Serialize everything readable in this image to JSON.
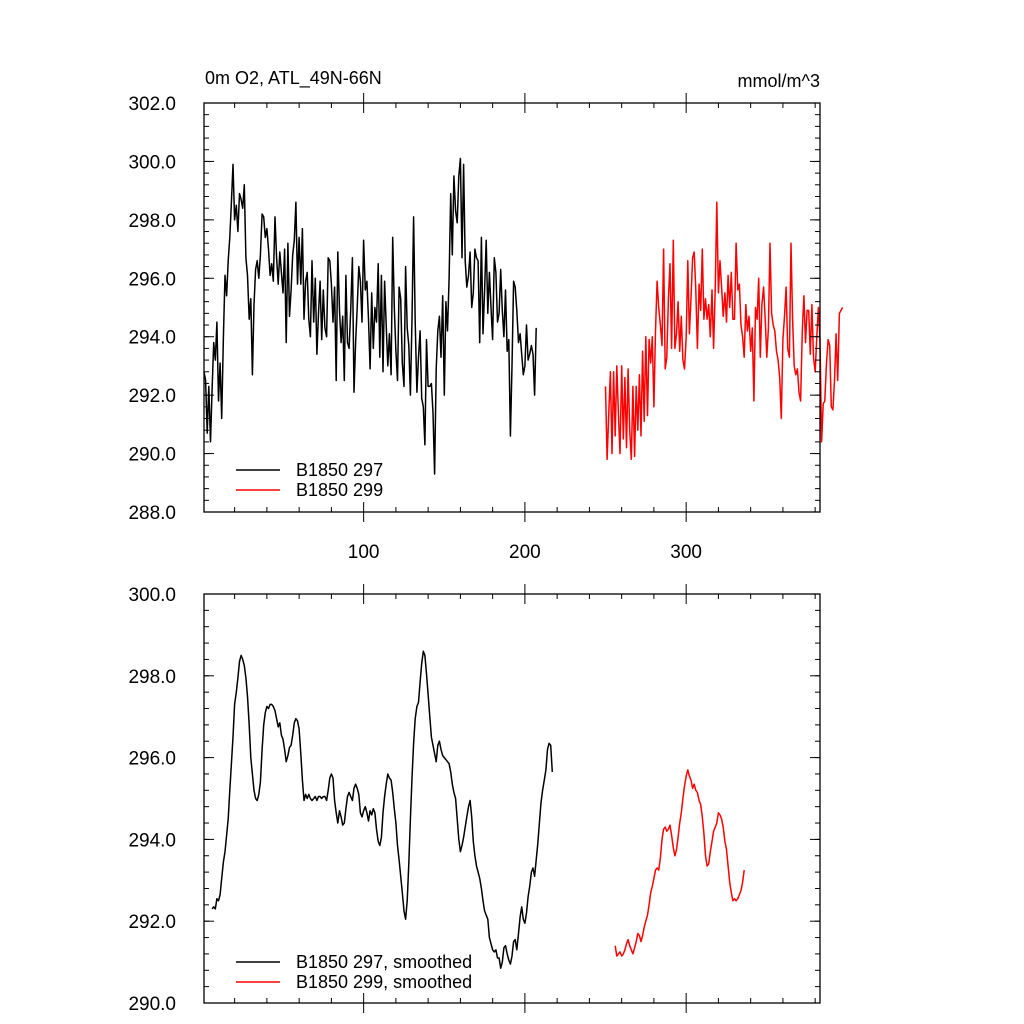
{
  "chart_data": [
    {
      "type": "line",
      "title": "0m O2, ATL_49N-66N",
      "units": "mmol/m^3",
      "xlabel": "",
      "ylabel": "",
      "xlim": [
        1,
        383
      ],
      "ylim": [
        288.0,
        302.0
      ],
      "x_ticks": [
        100,
        200,
        300
      ],
      "x_tick_labels": [
        "100",
        "200",
        "300"
      ],
      "y_ticks": [
        288,
        290,
        292,
        294,
        296,
        298,
        300,
        302
      ],
      "y_tick_labels": [
        "288.0",
        "290.0",
        "292.0",
        "294.0",
        "296.0",
        "298.0",
        "300.0",
        "302.0"
      ],
      "legend_position": "bottom-left",
      "series": [
        {
          "name": "B1850 297",
          "color": "#000000",
          "x_start": 1,
          "values": [
            292.8,
            292.5,
            290.7,
            292.3,
            290.4,
            292.2,
            293.8,
            293.2,
            294.5,
            291.8,
            293.1,
            291.2,
            294.0,
            296.1,
            295.4,
            296.6,
            297.4,
            298.6,
            299.9,
            298.0,
            298.5,
            297.6,
            298.9,
            298.7,
            298.4,
            299.2,
            296.7,
            296.1,
            294.6,
            295.3,
            292.7,
            295.1,
            296.3,
            296.6,
            296.0,
            296.8,
            298.2,
            298.1,
            297.4,
            297.7,
            297.0,
            296.1,
            296.5,
            295.9,
            298.1,
            296.7,
            295.8,
            296.9,
            296.2,
            295.5,
            297.0,
            293.8,
            297.2,
            294.7,
            295.6,
            296.8,
            297.3,
            298.6,
            295.8,
            297.4,
            295.8,
            297.7,
            294.6,
            295.9,
            296.2,
            294.6,
            294.0,
            296.6,
            294.5,
            296.0,
            293.4,
            294.8,
            295.9,
            293.9,
            295.6,
            294.3,
            294.0,
            296.7,
            296.6,
            295.8,
            294.5,
            295.7,
            292.5,
            296.9,
            294.9,
            293.8,
            294.7,
            292.5,
            296.1,
            293.8,
            293.6,
            294.9,
            296.7,
            292.1,
            293.8,
            295.0,
            296.4,
            295.9,
            294.5,
            297.3,
            295.6,
            295.9,
            294.6,
            292.9,
            295.5,
            293.6,
            295.0,
            294.5,
            296.5,
            293.3,
            296.1,
            292.8,
            295.9,
            294.4,
            293.0,
            294.1,
            292.7,
            297.4,
            295.0,
            293.5,
            292.5,
            295.7,
            295.3,
            293.1,
            292.3,
            296.4,
            294.3,
            293.7,
            292.0,
            294.6,
            298.1,
            294.5,
            292.1,
            293.3,
            294.2,
            291.9,
            291.6,
            290.3,
            293.9,
            292.3,
            292.3,
            292.4,
            291.4,
            289.3,
            292.9,
            294.2,
            294.7,
            293.3,
            295.4,
            292.0,
            295.2,
            294.2,
            296.0,
            298.9,
            296.8,
            299.5,
            298.3,
            297.9,
            299.5,
            300.1,
            296.7,
            299.9,
            296.6,
            295.7,
            296.1,
            296.9,
            295.0,
            295.5,
            297.0,
            296.7,
            296.6,
            293.8,
            297.4,
            294.1,
            295.6,
            297.3,
            294.8,
            296.2,
            295.0,
            293.9,
            296.7,
            296.2,
            294.5,
            294.8,
            296.3,
            294.9,
            294.0,
            295.6,
            293.5,
            293.9,
            290.6,
            293.0,
            295.9,
            295.7,
            294.9,
            293.8,
            294.1,
            293.4,
            292.7,
            293.0,
            294.4,
            293.2,
            293.4,
            293.7,
            293.4,
            292.0,
            294.3
          ],
          "values_legend": "B1850 297"
        },
        {
          "name": "B1850 299",
          "color": "#ff0000",
          "x_start": 250,
          "values": [
            292.3,
            289.8,
            291.4,
            292.8,
            290.0,
            292.8,
            290.6,
            293.0,
            291.4,
            290.0,
            293.0,
            290.5,
            292.6,
            290.2,
            292.9,
            290.8,
            289.8,
            292.3,
            289.9,
            292.3,
            290.8,
            292.7,
            290.6,
            293.5,
            291.1,
            294.0,
            291.3,
            293.9,
            293.1,
            294.0,
            291.6,
            294.2,
            295.9,
            295.0,
            294.4,
            293.7,
            297.0,
            292.9,
            293.3,
            295.3,
            296.5,
            293.6,
            297.3,
            293.6,
            294.1,
            295.2,
            293.5,
            294.7,
            293.2,
            292.9,
            294.0,
            296.6,
            294.1,
            295.3,
            296.7,
            296.9,
            295.6,
            293.6,
            295.8,
            294.9,
            297.0,
            294.6,
            295.3,
            294.6,
            295.1,
            294.0,
            295.6,
            293.6,
            295.6,
            298.6,
            295.5,
            296.6,
            295.7,
            294.7,
            295.5,
            294.5,
            296.1,
            295.0,
            296.2,
            294.6,
            294.6,
            297.2,
            295.6,
            295.8,
            294.4,
            294.0,
            293.3,
            295.1,
            294.2,
            294.7,
            293.5,
            294.3,
            291.8,
            295.0,
            294.6,
            296.0,
            293.3,
            295.1,
            295.7,
            294.6,
            293.3,
            294.3,
            297.2,
            294.8,
            294.4,
            294.2,
            293.5,
            293.2,
            292.6,
            291.2,
            293.9,
            294.7,
            295.7,
            293.6,
            293.3,
            297.2,
            294.6,
            293.0,
            292.7,
            292.9,
            292.1,
            291.8,
            294.2,
            295.4,
            293.8,
            294.9,
            294.9,
            293.4,
            295.1,
            293.3,
            292.8,
            294.0,
            295.0,
            293.9,
            290.4,
            291.7,
            291.8,
            293.1,
            293.9,
            293.7,
            291.6,
            291.5,
            292.5,
            294.1,
            292.5,
            294.8,
            294.9,
            295.0
          ],
          "values_legend": "B1850 299"
        }
      ]
    },
    {
      "type": "line",
      "title": "",
      "units": "",
      "xlabel": "",
      "ylabel": "",
      "xlim": [
        1,
        383
      ],
      "ylim": [
        290.0,
        300.0
      ],
      "x_ticks": [],
      "x_tick_labels": [],
      "y_ticks": [
        290,
        292,
        294,
        296,
        298,
        300
      ],
      "y_tick_labels": [
        "290.0",
        "292.0",
        "294.0",
        "296.0",
        "298.0",
        "300.0"
      ],
      "legend_position": "bottom-left",
      "series": [
        {
          "name": "B1850 297, smoothed",
          "color": "#000000",
          "x_start": 6,
          "values": [
            292.3,
            292.35,
            292.3,
            292.55,
            292.5,
            292.65,
            293.05,
            293.45,
            293.7,
            294.1,
            294.5,
            295.2,
            295.85,
            296.5,
            297.3,
            297.6,
            297.95,
            298.35,
            298.5,
            298.4,
            298.25,
            297.95,
            297.5,
            296.8,
            296.0,
            295.6,
            295.2,
            295.0,
            294.95,
            295.1,
            295.4,
            296.2,
            296.8,
            297.1,
            297.25,
            297.2,
            297.3,
            297.3,
            297.25,
            297.15,
            296.95,
            296.75,
            296.85,
            296.55,
            296.45,
            296.2,
            295.9,
            296.05,
            296.25,
            296.3,
            296.55,
            296.85,
            296.95,
            296.9,
            296.7,
            296.1,
            295.45,
            294.95,
            295.1,
            295.0,
            295.1,
            295.0,
            294.95,
            295.0,
            295.05,
            294.95,
            295.05,
            295.05,
            295.0,
            295.05,
            295.05,
            294.95,
            295.2,
            295.5,
            295.6,
            295.5,
            294.95,
            294.65,
            294.4,
            294.7,
            294.55,
            294.35,
            294.4,
            294.75,
            295.05,
            295.15,
            295.05,
            294.95,
            295.25,
            295.35,
            295.25,
            295.1,
            294.65,
            294.55,
            294.7,
            294.8,
            294.65,
            294.45,
            294.7,
            294.6,
            294.75,
            294.65,
            294.25,
            293.95,
            293.85,
            294.05,
            294.65,
            295.05,
            295.35,
            295.6,
            295.5,
            295.45,
            295.15,
            294.75,
            294.4,
            293.85,
            293.5,
            293.1,
            292.7,
            292.25,
            292.05,
            292.5,
            293.4,
            294.5,
            295.5,
            296.35,
            296.95,
            297.25,
            297.35,
            297.85,
            298.3,
            298.6,
            298.5,
            298.05,
            297.55,
            297.0,
            296.5,
            296.3,
            296.1,
            295.9,
            296.3,
            296.4,
            296.2,
            296.05,
            296.0,
            295.95,
            295.9,
            295.85,
            295.65,
            295.35,
            295.15,
            295.0,
            294.5,
            294.0,
            293.7,
            293.85,
            294.05,
            294.3,
            294.55,
            294.8,
            294.95,
            294.55,
            293.95,
            293.6,
            293.35,
            293.2,
            293.05,
            292.8,
            292.5,
            292.25,
            292.15,
            292.05,
            291.6,
            291.45,
            291.3,
            291.25,
            291.3,
            291.1,
            291.1,
            290.85,
            291.0,
            291.35,
            291.4,
            291.2,
            291.05,
            290.95,
            291.15,
            291.5,
            291.55,
            291.3,
            291.7,
            292.1,
            292.35,
            292.05,
            291.95,
            292.2,
            292.6,
            292.85,
            293.2,
            293.3,
            293.1,
            293.5,
            293.9,
            294.4,
            294.9,
            295.2,
            295.45,
            295.7,
            296.2,
            296.35,
            296.3,
            295.65
          ],
          "values_legend": "B1850 297, smoothed"
        },
        {
          "name": "B1850 299, smoothed",
          "color": "#ff0000",
          "x_start": 256,
          "values": [
            291.4,
            291.15,
            291.2,
            291.25,
            291.15,
            291.2,
            291.3,
            291.45,
            291.55,
            291.4,
            291.3,
            291.2,
            291.35,
            291.5,
            291.7,
            291.65,
            291.5,
            291.65,
            291.85,
            292.0,
            292.15,
            292.4,
            292.7,
            292.85,
            293.05,
            293.25,
            293.3,
            293.25,
            293.55,
            294.0,
            294.25,
            294.3,
            294.2,
            294.25,
            294.35,
            294.1,
            293.8,
            293.6,
            293.75,
            294.05,
            294.4,
            294.65,
            295.0,
            295.3,
            295.55,
            295.7,
            295.55,
            295.45,
            295.25,
            295.35,
            295.2,
            295.15,
            294.95,
            294.85,
            294.55,
            294.15,
            293.6,
            293.35,
            293.4,
            293.7,
            293.95,
            294.2,
            294.3,
            294.4,
            294.65,
            294.6,
            294.5,
            294.3,
            293.95,
            293.75,
            293.35,
            292.95,
            292.7,
            292.5,
            292.55,
            292.5,
            292.55,
            292.65,
            292.75,
            292.95,
            293.25
          ],
          "values_legend": "B1850 299, smoothed"
        }
      ]
    }
  ]
}
